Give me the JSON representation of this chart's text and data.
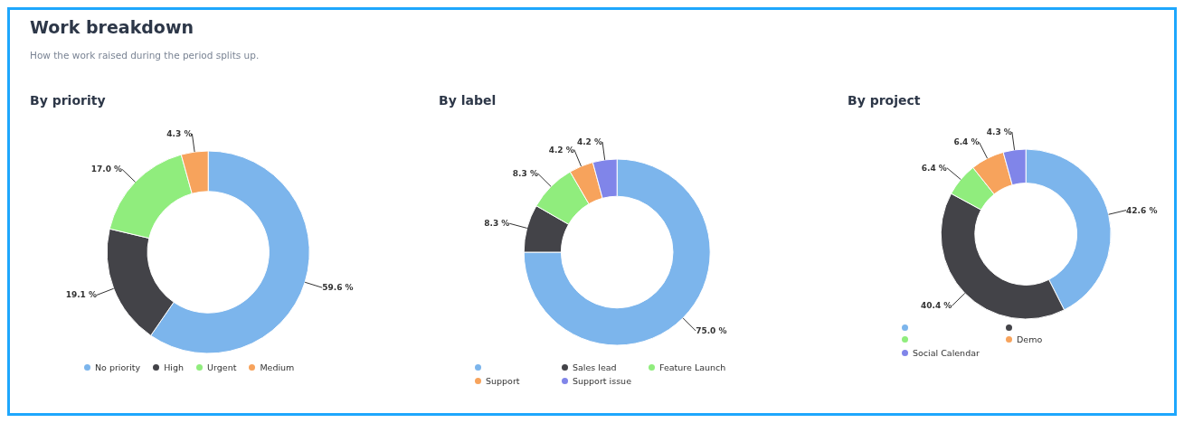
{
  "chart_data": [
    {
      "type": "other",
      "title": "Work breakdown",
      "subtitle": "How the work raised during the period splits up."
    },
    {
      "type": "donut",
      "title": "By priority",
      "categories": [
        "No priority",
        "High",
        "Urgent",
        "Medium"
      ],
      "values": [
        59.6,
        19.1,
        17.0,
        4.3
      ],
      "value_labels": [
        "59.6 %",
        "19.1 %",
        "17.0 %",
        "4.3 %"
      ],
      "colors": [
        "#7cb5ec",
        "#434348",
        "#90ed7d",
        "#f7a35c"
      ],
      "legend": "bottom"
    },
    {
      "type": "donut",
      "title": "By label",
      "categories": [
        null,
        "Sales lead",
        "Feature Launch",
        "Support",
        "Support issue"
      ],
      "values": [
        75.0,
        8.3,
        8.3,
        4.2,
        4.2
      ],
      "value_labels": [
        "75.0 %",
        "8.3 %",
        "8.3 %",
        "4.2 %",
        "4.2 %"
      ],
      "colors": [
        "#7cb5ec",
        "#434348",
        "#90ed7d",
        "#f7a35c",
        "#8085e9"
      ],
      "legend": "bottom"
    },
    {
      "type": "donut",
      "title": "By project",
      "categories": [
        null,
        null,
        null,
        "Demo",
        "Social Calendar"
      ],
      "values": [
        42.6,
        40.4,
        6.4,
        6.4,
        4.3
      ],
      "value_labels": [
        "42.6 %",
        "40.4 %",
        "6.4 %",
        "6.4 %",
        "4.3 %"
      ],
      "colors": [
        "#7cb5ec",
        "#434348",
        "#90ed7d",
        "#f7a35c",
        "#8085e9"
      ],
      "legend": "bottom"
    }
  ]
}
